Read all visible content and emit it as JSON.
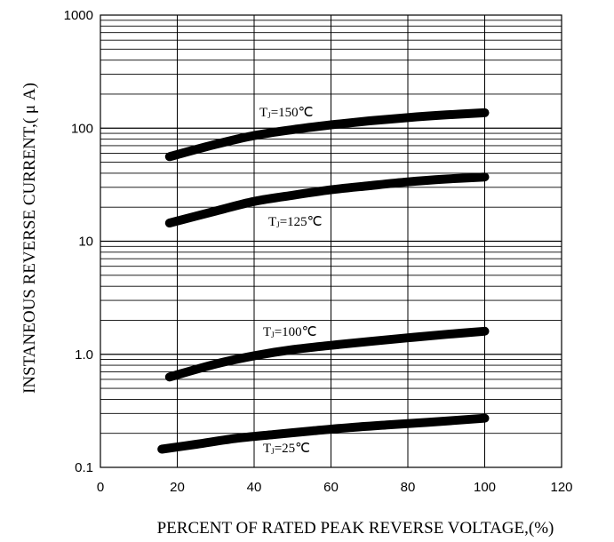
{
  "chart_data": {
    "type": "line",
    "xlabel": "PERCENT OF RATED PEAK REVERSE VOLTAGE,(%)",
    "ylabel": "INSTANEOUS REVERSE CURRENT,( μ A)",
    "xlim": [
      0,
      120
    ],
    "ylim": [
      0.1,
      1000
    ],
    "yscale": "log",
    "xticks": [
      0,
      20,
      40,
      60,
      80,
      100,
      120
    ],
    "xtick_labels": [
      "0",
      "20",
      "40",
      "60",
      "80",
      "100",
      "120"
    ],
    "yticks": [
      0.1,
      1,
      10,
      100,
      1000
    ],
    "ytick_labels": [
      "0.1",
      "1.0",
      "10",
      "100",
      "1000"
    ],
    "grid": true,
    "series": [
      {
        "name": "TJ=150℃",
        "label_parts": [
          "T",
          "J",
          "=150℃"
        ],
        "x": [
          18,
          30,
          40,
          50,
          60,
          70,
          80,
          90,
          100
        ],
        "y": [
          56,
          72,
          86,
          97,
          107,
          116,
          124,
          131,
          137
        ]
      },
      {
        "name": "TJ=125℃",
        "label_parts": [
          "T",
          "J",
          "=125℃"
        ],
        "x": [
          18,
          30,
          40,
          50,
          60,
          70,
          80,
          90,
          100
        ],
        "y": [
          14.5,
          18.5,
          22.5,
          25.5,
          28.5,
          31,
          33.5,
          35.5,
          37
        ]
      },
      {
        "name": "TJ=100℃",
        "label_parts": [
          "T",
          "J",
          "=100℃"
        ],
        "x": [
          18,
          30,
          40,
          50,
          60,
          70,
          80,
          90,
          100
        ],
        "y": [
          0.63,
          0.82,
          0.97,
          1.1,
          1.2,
          1.3,
          1.4,
          1.5,
          1.6
        ]
      },
      {
        "name": "TJ=25℃",
        "label_parts": [
          "T",
          "J",
          "=25℃"
        ],
        "x": [
          16,
          25,
          35,
          45,
          55,
          65,
          75,
          85,
          100
        ],
        "y": [
          0.145,
          0.16,
          0.18,
          0.195,
          0.21,
          0.225,
          0.238,
          0.25,
          0.272
        ]
      }
    ]
  }
}
